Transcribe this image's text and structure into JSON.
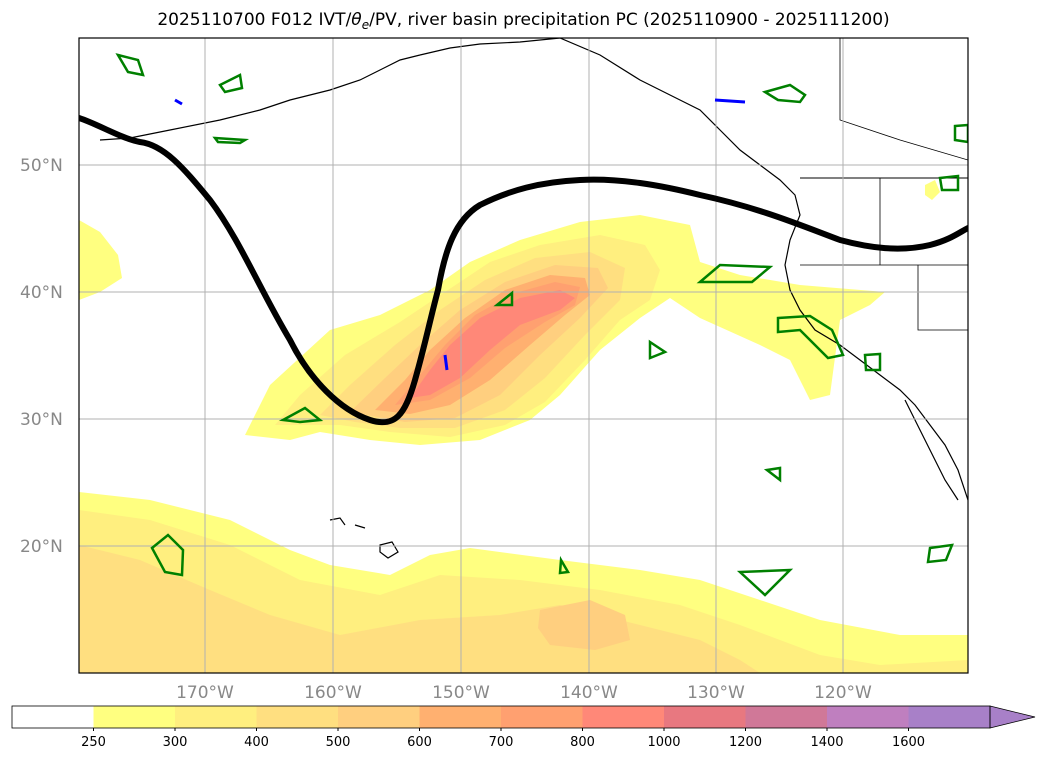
{
  "title": {
    "prefix": "2025110700 F012 IVT/",
    "theta": "θ",
    "theta_sub": "e",
    "suffix": "/PV, river basin precipitation PC (2025110900 - 2025111200)"
  },
  "map": {
    "lat_labels": [
      "50°N",
      "40°N",
      "30°N",
      "20°N"
    ],
    "lon_labels": [
      "170°W",
      "160°W",
      "150°W",
      "140°W",
      "130°W",
      "120°W"
    ],
    "colors": {
      "pv_contour": "#000000",
      "precip_outline": "#008000",
      "pv_blue": "#0000ff",
      "coast": "#000000",
      "grid": "#b0b0b0",
      "axis_label": "#888888"
    }
  },
  "colorbar": {
    "levels": [
      "250",
      "300",
      "400",
      "500",
      "600",
      "700",
      "800",
      "1000",
      "1200",
      "1400",
      "1600"
    ],
    "colors": [
      "#ffffff",
      "#ffff80",
      "#ffef7f",
      "#ffdf80",
      "#ffcf7f",
      "#ffb070",
      "#ffa070",
      "#ff8878",
      "#e87880",
      "#d07898",
      "#bf7fbf",
      "#a880c8"
    ],
    "extend": "max"
  }
}
